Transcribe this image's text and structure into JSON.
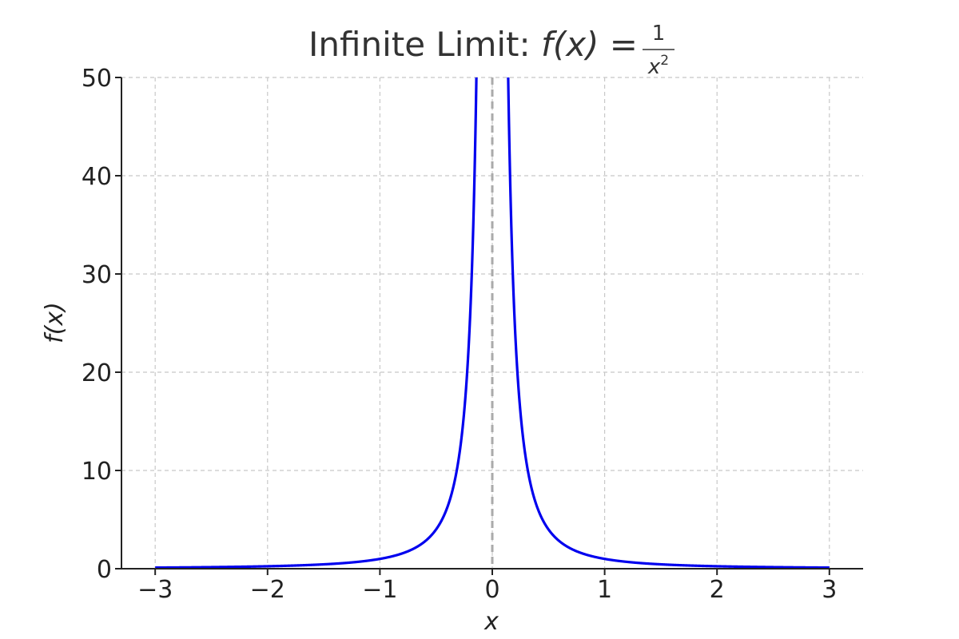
{
  "chart_data": {
    "type": "line",
    "title_prefix": "Infinite Limit: ",
    "title_func": "f(x) = ",
    "title_numerator": "1",
    "title_denominator_base": "x",
    "title_denominator_exp": "2",
    "xlabel": "x",
    "ylabel": "f(x)",
    "xlim": [
      -3.3,
      3.3
    ],
    "ylim": [
      0,
      50
    ],
    "xticks": [
      -3,
      -2,
      -1,
      0,
      1,
      2,
      3
    ],
    "xtick_labels": [
      "−3",
      "−2",
      "−1",
      "0",
      "1",
      "2",
      "3"
    ],
    "yticks": [
      0,
      10,
      20,
      30,
      40,
      50
    ],
    "ytick_labels": [
      "0",
      "10",
      "20",
      "30",
      "40",
      "50"
    ],
    "grid": true,
    "series": [
      {
        "function": "1/x^2",
        "x_range": [
          -3,
          3
        ],
        "color": "#0000ee"
      }
    ],
    "asymptote": {
      "x": 0,
      "color": "#aaaaaa",
      "style": "dashed"
    }
  }
}
